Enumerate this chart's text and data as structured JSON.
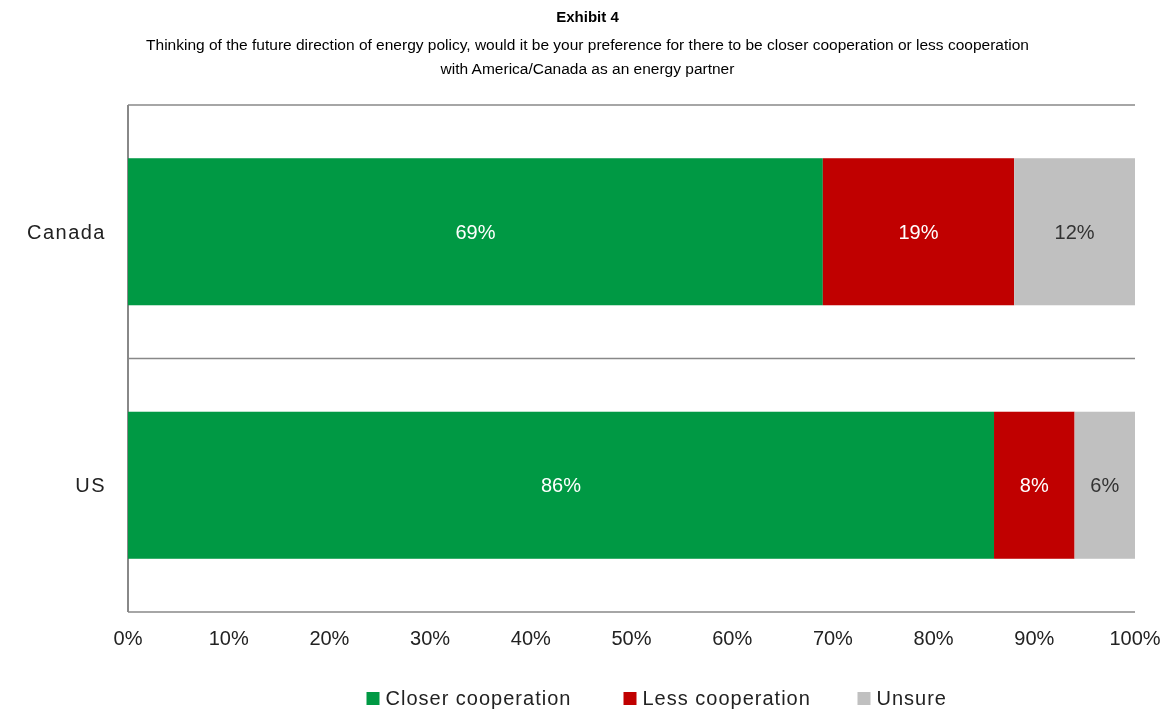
{
  "chart_data": {
    "type": "bar",
    "orientation": "horizontal",
    "stacked": true,
    "title": "Exhibit 4",
    "subtitle": "Thinking of the future direction of energy policy, would it be your preference for there to be closer cooperation or less cooperation with America/Canada as an energy partner",
    "categories": [
      "Canada",
      "US"
    ],
    "series": [
      {
        "name": "Closer cooperation",
        "color": "#009944",
        "values": [
          69,
          86
        ],
        "value_labels": [
          "69%",
          "86%"
        ]
      },
      {
        "name": "Less cooperation",
        "color": "#c00000",
        "values": [
          19,
          8
        ],
        "value_labels": [
          "19%",
          "8%"
        ]
      },
      {
        "name": "Unsure",
        "color": "#c0c0c0",
        "values": [
          12,
          6
        ],
        "value_labels": [
          "12%",
          "6%"
        ]
      }
    ],
    "xlim": [
      0,
      100
    ],
    "xticks": [
      {
        "value": 0,
        "label": "0%"
      },
      {
        "value": 10,
        "label": "10%"
      },
      {
        "value": 20,
        "label": "20%"
      },
      {
        "value": 30,
        "label": "30%"
      },
      {
        "value": 40,
        "label": "40%"
      },
      {
        "value": 50,
        "label": "50%"
      },
      {
        "value": 60,
        "label": "60%"
      },
      {
        "value": 70,
        "label": "70%"
      },
      {
        "value": 80,
        "label": "80%"
      },
      {
        "value": 90,
        "label": "90%"
      },
      {
        "value": 100,
        "label": "100%"
      }
    ],
    "grid": "y",
    "legend": "bottom"
  }
}
